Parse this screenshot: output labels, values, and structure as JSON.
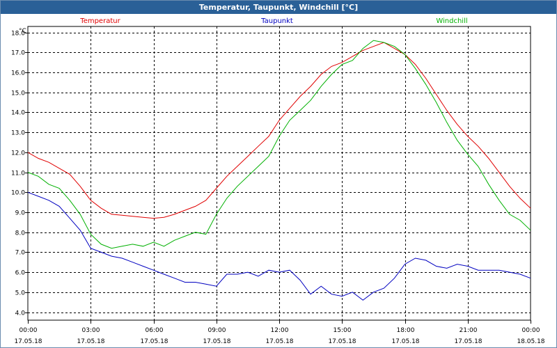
{
  "window": {
    "title": "Temperatur, Taupunkt, Windchill [°C]"
  },
  "chart_data": {
    "type": "line",
    "title": "Temperatur, Taupunkt, Windchill [°C]",
    "ylabel": "°C",
    "ylim": [
      3.6,
      18.3
    ],
    "yticks": [
      "4.0",
      "5.0",
      "6.0",
      "7.0",
      "8.0",
      "9.0",
      "10.0",
      "11.0",
      "12.0",
      "13.0",
      "14.0",
      "15.0",
      "16.0",
      "17.0",
      "18.0"
    ],
    "xticks": [
      {
        "time": "00:00",
        "date": "17.05.18"
      },
      {
        "time": "03:00",
        "date": "17.05.18"
      },
      {
        "time": "06:00",
        "date": "17.05.18"
      },
      {
        "time": "09:00",
        "date": "17.05.18"
      },
      {
        "time": "12:00",
        "date": "17.05.18"
      },
      {
        "time": "15:00",
        "date": "17.05.18"
      },
      {
        "time": "18:00",
        "date": "17.05.18"
      },
      {
        "time": "21:00",
        "date": "17.05.18"
      },
      {
        "time": "00:00",
        "date": "18.05.18"
      }
    ],
    "grid": true,
    "x_hours": [
      0,
      0.5,
      1,
      1.5,
      2,
      2.5,
      3,
      3.5,
      4,
      4.5,
      5,
      5.5,
      6,
      6.5,
      7,
      7.5,
      8,
      8.5,
      9,
      9.5,
      10,
      10.5,
      11,
      11.5,
      12,
      12.5,
      13,
      13.5,
      14,
      14.5,
      15,
      15.5,
      16,
      16.5,
      17,
      17.5,
      18,
      18.5,
      19,
      19.5,
      20,
      20.5,
      21,
      21.5,
      22,
      22.5,
      23,
      23.5,
      24
    ],
    "series": [
      {
        "name": "Temperatur",
        "color": "#e00000",
        "values": [
          12.0,
          11.7,
          11.5,
          11.2,
          10.9,
          10.3,
          9.6,
          9.2,
          8.9,
          8.85,
          8.8,
          8.75,
          8.7,
          8.75,
          8.9,
          9.1,
          9.3,
          9.6,
          10.2,
          10.8,
          11.3,
          11.8,
          12.3,
          12.8,
          13.6,
          14.2,
          14.8,
          15.3,
          15.9,
          16.3,
          16.5,
          16.8,
          17.1,
          17.3,
          17.5,
          17.2,
          16.9,
          16.4,
          15.7,
          14.9,
          14.1,
          13.4,
          12.8,
          12.3,
          11.7,
          11.0,
          10.3,
          9.7,
          9.2
        ]
      },
      {
        "name": "Taupunkt",
        "color": "#0000c0",
        "values": [
          10.0,
          9.8,
          9.6,
          9.3,
          8.7,
          8.1,
          7.2,
          7.0,
          6.8,
          6.7,
          6.5,
          6.3,
          6.1,
          5.9,
          5.7,
          5.5,
          5.5,
          5.4,
          5.3,
          5.9,
          5.9,
          6.0,
          5.8,
          6.1,
          6.0,
          6.1,
          5.6,
          4.9,
          5.3,
          4.9,
          4.8,
          5.0,
          4.6,
          5.0,
          5.2,
          5.7,
          6.4,
          6.7,
          6.6,
          6.3,
          6.2,
          6.4,
          6.3,
          6.1,
          6.1,
          6.1,
          6.0,
          5.9,
          5.7
        ]
      },
      {
        "name": "Windchill",
        "color": "#00b000",
        "values": [
          11.0,
          10.8,
          10.4,
          10.2,
          9.6,
          8.9,
          7.9,
          7.4,
          7.2,
          7.3,
          7.4,
          7.3,
          7.5,
          7.3,
          7.6,
          7.8,
          8.0,
          7.9,
          8.9,
          9.7,
          10.3,
          10.8,
          11.3,
          11.8,
          12.8,
          13.6,
          14.1,
          14.6,
          15.3,
          15.9,
          16.4,
          16.6,
          17.2,
          17.6,
          17.5,
          17.3,
          16.9,
          16.2,
          15.4,
          14.5,
          13.5,
          12.6,
          11.9,
          11.3,
          10.4,
          9.6,
          8.9,
          8.6,
          8.1
        ]
      }
    ]
  }
}
